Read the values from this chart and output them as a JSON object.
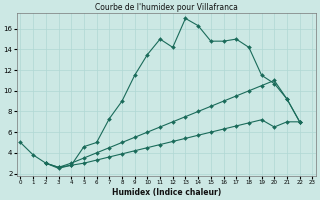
{
  "title": "Courbe de l'humidex pour Villafranca",
  "xlabel": "Humidex (Indice chaleur)",
  "ylabel": "",
  "bg_color": "#cce8e4",
  "line_color": "#1a6b5a",
  "grid_color": "#b0d8d4",
  "line1": {
    "x": [
      0,
      1,
      2,
      3,
      4,
      5,
      6,
      7,
      8,
      9,
      10,
      11,
      12,
      13,
      14,
      15,
      16,
      17,
      18,
      19,
      20,
      21,
      22
    ],
    "y": [
      5.0,
      3.8,
      3.0,
      2.6,
      2.8,
      4.6,
      5.0,
      7.3,
      9.0,
      11.5,
      13.5,
      15.0,
      14.2,
      17.0,
      16.3,
      14.8,
      14.8,
      15.0,
      14.2,
      11.5,
      10.7,
      9.2,
      7.0
    ]
  },
  "line2": {
    "x": [
      2,
      3,
      4,
      5,
      6,
      7,
      8,
      9,
      10,
      11,
      12,
      13,
      14,
      15,
      16,
      17,
      18,
      19,
      20,
      21,
      22
    ],
    "y": [
      3.0,
      2.6,
      3.0,
      3.5,
      4.0,
      4.5,
      5.0,
      5.5,
      6.0,
      6.5,
      7.0,
      7.5,
      8.0,
      8.5,
      9.0,
      9.5,
      10.0,
      10.5,
      11.0,
      9.2,
      7.0
    ]
  },
  "line3": {
    "x": [
      2,
      3,
      4,
      5,
      6,
      7,
      8,
      9,
      10,
      11,
      12,
      13,
      14,
      15,
      16,
      17,
      18,
      19,
      20,
      21,
      22
    ],
    "y": [
      3.0,
      2.5,
      2.8,
      3.0,
      3.3,
      3.6,
      3.9,
      4.2,
      4.5,
      4.8,
      5.1,
      5.4,
      5.7,
      6.0,
      6.3,
      6.6,
      6.9,
      7.2,
      6.5,
      7.0,
      7.0
    ]
  },
  "xlim": [
    -0.3,
    23.3
  ],
  "ylim": [
    1.8,
    17.5
  ],
  "xticks": [
    0,
    1,
    2,
    3,
    4,
    5,
    6,
    7,
    8,
    9,
    10,
    11,
    12,
    13,
    14,
    15,
    16,
    17,
    18,
    19,
    20,
    21,
    22,
    23
  ],
  "yticks": [
    2,
    4,
    6,
    8,
    10,
    12,
    14,
    16
  ]
}
